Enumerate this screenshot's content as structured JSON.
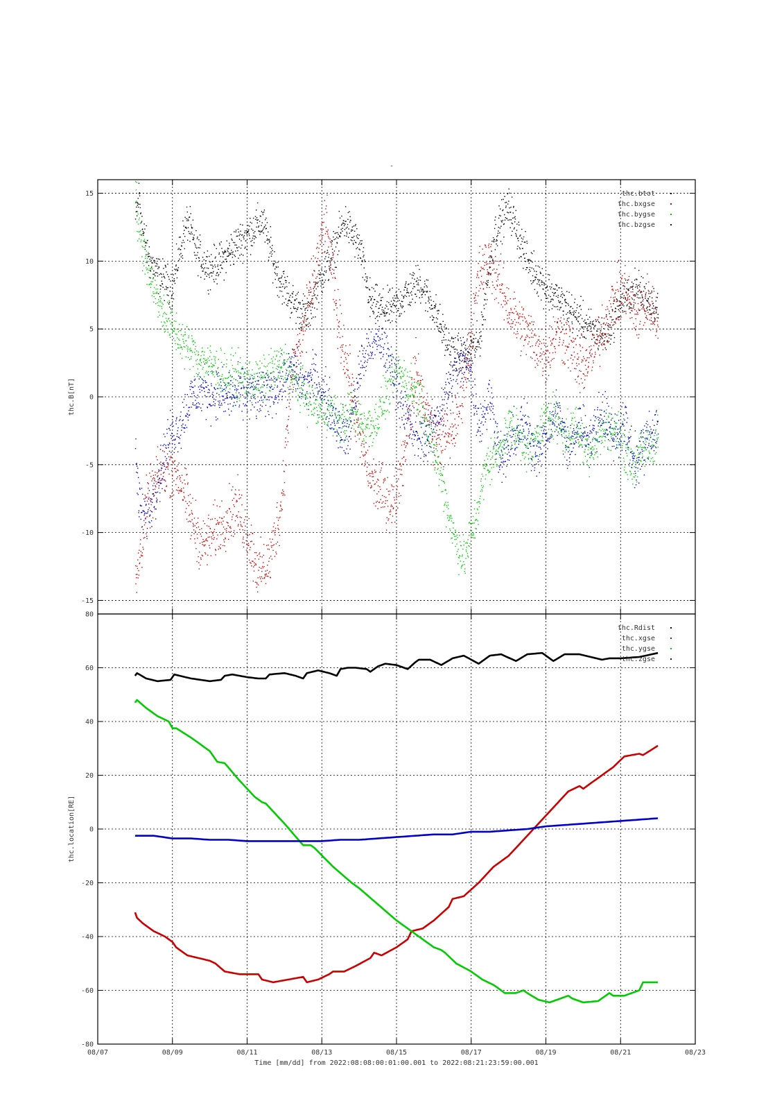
{
  "figure": {
    "title_mark": "-",
    "x_axis_title": "Time [mm/dd]  from 2022:08:08:00:01:00.001  to  2022:08:21:23:59:00.001"
  },
  "chart_data": [
    {
      "type": "scatter",
      "ylabel": "thc.B[nT]",
      "xlabel": "",
      "xlim": [
        0,
        16
      ],
      "ylim": [
        -16,
        16
      ],
      "x_ticks": [],
      "y_ticks": [
        -15,
        -10,
        -5,
        0,
        5,
        10,
        15
      ],
      "grid": true,
      "legend_position": "top-right",
      "series": [
        {
          "name": "thc.btot",
          "color": "#000000",
          "spread": 1.4,
          "x": [
            1.0,
            1.1,
            1.2,
            1.4,
            1.6,
            1.8,
            2.0,
            2.2,
            2.4,
            2.6,
            2.8,
            3.0,
            3.3,
            3.6,
            4.0,
            4.4,
            4.8,
            5.2,
            5.6,
            6.0,
            6.2,
            6.6,
            7.0,
            7.3,
            7.6,
            7.9,
            8.2,
            8.6,
            9.0,
            9.4,
            9.8,
            10.2,
            10.6,
            11.0,
            11.5,
            12.0,
            12.4,
            12.8,
            13.2,
            13.6,
            14.0,
            14.4,
            14.8,
            15.0
          ],
          "y": [
            13,
            15,
            12,
            10,
            9,
            8.5,
            8,
            11,
            13,
            11,
            10,
            9.5,
            10,
            11,
            12,
            13,
            9,
            7,
            6,
            9,
            10,
            13,
            11,
            7,
            6.5,
            6.5,
            7.5,
            8.5,
            6.5,
            3.5,
            3,
            4,
            12,
            14,
            10,
            8,
            7,
            6,
            5,
            4.5,
            7,
            8,
            7,
            6.5
          ]
        },
        {
          "name": "thc.bxgse",
          "color": "#cc0000",
          "spread": 2.0,
          "x": [
            1.0,
            1.1,
            1.3,
            1.6,
            1.9,
            2.2,
            2.5,
            2.8,
            3.1,
            3.4,
            3.7,
            4.0,
            4.3,
            4.6,
            4.9,
            5.2,
            5.5,
            5.8,
            6.1,
            6.4,
            6.7,
            7.0,
            7.3,
            7.6,
            7.9,
            8.2,
            8.5,
            8.8,
            9.0,
            9.3,
            9.6,
            9.9,
            10.2,
            10.5,
            10.8,
            11.1,
            11.4,
            11.7,
            12.0,
            12.3,
            12.6,
            12.9,
            13.2,
            13.5,
            13.8,
            14.1,
            14.4,
            14.7,
            15.0
          ],
          "y": [
            -14,
            -12,
            -8,
            -6,
            -5,
            -6,
            -9,
            -11,
            -10,
            -9,
            -8,
            -10,
            -13,
            -12,
            -8,
            2,
            5,
            9,
            13,
            6,
            2,
            -3,
            -6,
            -7,
            -8,
            -4,
            2,
            -1,
            -3,
            -3,
            -2,
            3,
            9,
            10,
            8,
            6,
            5,
            4,
            3,
            5,
            4,
            2,
            3,
            5,
            7,
            8,
            6,
            7,
            6
          ]
        },
        {
          "name": "thc.bygse",
          "color": "#00cc00",
          "spread": 1.6,
          "x": [
            1.0,
            1.1,
            1.2,
            1.4,
            1.6,
            1.8,
            2.0,
            2.3,
            2.6,
            2.9,
            3.2,
            3.5,
            3.8,
            4.1,
            4.4,
            4.7,
            5.0,
            5.3,
            5.6,
            5.9,
            6.2,
            6.5,
            6.8,
            7.1,
            7.4,
            7.7,
            8.0,
            8.3,
            8.6,
            8.9,
            9.2,
            9.5,
            9.8,
            10.1,
            10.4,
            10.7,
            11.0,
            11.3,
            11.6,
            11.9,
            12.2,
            12.5,
            12.8,
            13.1,
            13.4,
            13.7,
            14.0,
            14.3,
            14.6,
            15.0
          ],
          "y": [
            15,
            12,
            11,
            9,
            7,
            6,
            5,
            4,
            3,
            2.5,
            2,
            1.5,
            1.5,
            1.2,
            1.2,
            2,
            2.5,
            1,
            0,
            -1,
            -1,
            -2,
            -1,
            -2,
            -2,
            0,
            2,
            1,
            0,
            -3,
            -6,
            -10,
            -12,
            -9,
            -5,
            -4,
            -2,
            -3,
            -4,
            -2,
            -1,
            -3,
            -2,
            -4,
            -3,
            -2,
            -3,
            -5,
            -4,
            -3
          ]
        },
        {
          "name": "thc.bzgse",
          "color": "#0000cc",
          "spread": 1.8,
          "x": [
            1.0,
            1.1,
            1.3,
            1.6,
            1.9,
            2.2,
            2.5,
            2.8,
            3.1,
            3.4,
            3.7,
            4.0,
            4.3,
            4.6,
            4.9,
            5.2,
            5.5,
            5.8,
            6.1,
            6.4,
            6.7,
            7.0,
            7.3,
            7.6,
            7.9,
            8.2,
            8.5,
            8.8,
            9.0,
            9.3,
            9.6,
            9.9,
            10.2,
            10.5,
            10.8,
            11.1,
            11.4,
            11.7,
            12.0,
            12.3,
            12.6,
            12.9,
            13.2,
            13.5,
            13.8,
            14.1,
            14.4,
            14.7,
            15.0
          ],
          "y": [
            -4,
            -8,
            -9,
            -6,
            -3,
            -2,
            0,
            0.5,
            0.3,
            0,
            0.2,
            0.3,
            0,
            0.5,
            1,
            2,
            1,
            1.5,
            0,
            -2,
            -3,
            2,
            4,
            4,
            2,
            -1,
            -3,
            -3,
            -2,
            0,
            2,
            3,
            -2,
            0,
            -5,
            -3,
            -2,
            -4,
            -3,
            -1,
            -4,
            -2,
            -3,
            -1,
            -3,
            -2,
            -5,
            -3,
            -2
          ]
        }
      ]
    },
    {
      "type": "line",
      "ylabel": "thc.location[RE]",
      "xlabel": "",
      "xlim": [
        0,
        16
      ],
      "ylim": [
        -80,
        80
      ],
      "x_ticks": [
        "08/07",
        "08/09",
        "08/11",
        "08/13",
        "08/15",
        "08/17",
        "08/19",
        "08/21",
        "08/23"
      ],
      "y_ticks": [
        -80,
        -60,
        -40,
        -20,
        0,
        20,
        40,
        60,
        80
      ],
      "grid": true,
      "legend_position": "top-right",
      "series": [
        {
          "name": "thc.Rdist",
          "color": "#000000",
          "x": [
            1.0,
            1.05,
            1.3,
            1.6,
            1.95,
            2.0,
            2.05,
            2.5,
            3.0,
            3.3,
            3.4,
            3.6,
            4.0,
            4.3,
            4.5,
            4.6,
            5.0,
            5.3,
            5.5,
            5.6,
            5.9,
            6.2,
            6.4,
            6.5,
            6.7,
            6.9,
            7.2,
            7.3,
            7.5,
            7.7,
            8.0,
            8.3,
            8.5,
            8.6,
            8.9,
            9.2,
            9.5,
            9.8,
            10.2,
            10.5,
            10.8,
            11.2,
            11.5,
            11.9,
            12.2,
            12.5,
            12.9,
            13.2,
            13.5,
            13.7,
            14.0,
            14.5,
            15.0
          ],
          "y": [
            57,
            58,
            56,
            55,
            55.5,
            56.5,
            57.5,
            56,
            55,
            55.5,
            57,
            57.5,
            56.5,
            56,
            56,
            57.5,
            58,
            57,
            56,
            58,
            59,
            58,
            57,
            59.5,
            60,
            60,
            59.5,
            58.5,
            60.5,
            61.5,
            61,
            59.5,
            62,
            63,
            63,
            61,
            63.5,
            64.5,
            61.5,
            64.5,
            65,
            62.5,
            65,
            65.5,
            62.5,
            65,
            65,
            64,
            63,
            63.5,
            63.5,
            64,
            65.5
          ]
        },
        {
          "name": "thc.xgse",
          "color": "#cc0000",
          "x": [
            1.0,
            1.05,
            1.2,
            1.5,
            1.8,
            2.0,
            2.1,
            2.4,
            2.7,
            3.0,
            3.15,
            3.4,
            3.8,
            4.1,
            4.3,
            4.4,
            4.7,
            5.1,
            5.5,
            5.6,
            5.9,
            6.2,
            6.3,
            6.6,
            6.9,
            7.3,
            7.4,
            7.6,
            8.0,
            8.3,
            8.4,
            8.7,
            9.0,
            9.4,
            9.5,
            9.8,
            10.2,
            10.6,
            10.8,
            11.0,
            11.4,
            11.8,
            12.2,
            12.6,
            12.9,
            13.0,
            13.4,
            13.8,
            14.1,
            14.5,
            14.6,
            15.0
          ],
          "y": [
            -31,
            -33,
            -35,
            -38,
            -40,
            -42,
            -44,
            -47,
            -48,
            -49,
            -50,
            -53,
            -54,
            -54,
            -54,
            -56,
            -57,
            -56,
            -55,
            -57,
            -56,
            -54,
            -53,
            -53,
            -51,
            -48,
            -46,
            -47,
            -44,
            -41,
            -38,
            -37,
            -34,
            -29,
            -26,
            -25,
            -20,
            -14,
            -12,
            -10,
            -4,
            2,
            8,
            14,
            16,
            15,
            19,
            23,
            27,
            28,
            27.5,
            31
          ]
        },
        {
          "name": "thc.ygse",
          "color": "#00cc00",
          "x": [
            1.0,
            1.05,
            1.3,
            1.6,
            1.9,
            2.0,
            2.1,
            2.5,
            3.0,
            3.2,
            3.4,
            3.8,
            4.2,
            4.4,
            4.5,
            5.0,
            5.5,
            5.7,
            5.8,
            6.3,
            6.8,
            6.9,
            7.0,
            7.5,
            8.0,
            8.1,
            8.2,
            8.6,
            9.0,
            9.2,
            9.3,
            9.6,
            10.0,
            10.2,
            10.3,
            10.6,
            10.9,
            11.2,
            11.4,
            11.5,
            11.8,
            12.1,
            12.4,
            12.6,
            12.7,
            13.0,
            13.4,
            13.7,
            13.8,
            14.1,
            14.5,
            14.6,
            15.0
          ],
          "y": [
            47,
            48,
            45,
            42,
            40,
            37.5,
            37.5,
            34,
            29,
            25,
            24.5,
            18,
            12,
            10,
            9.5,
            2,
            -6,
            -6,
            -7,
            -14,
            -20,
            -21,
            -22,
            -28,
            -34,
            -35,
            -36,
            -40,
            -44,
            -45,
            -46,
            -50,
            -53,
            -55,
            -56,
            -58,
            -61,
            -61,
            -60,
            -61,
            -63.5,
            -64.5,
            -63,
            -62,
            -63,
            -64.5,
            -64,
            -61,
            -62,
            -62,
            -60,
            -57,
            -57
          ]
        },
        {
          "name": "thc.zgse",
          "color": "#0000cc",
          "x": [
            1.0,
            1.5,
            2.0,
            2.5,
            3.0,
            3.5,
            4.0,
            4.5,
            5.0,
            5.5,
            6.0,
            6.5,
            7.0,
            7.5,
            8.0,
            8.5,
            9.0,
            9.5,
            10.0,
            10.5,
            11.0,
            11.5,
            12.0,
            12.5,
            13.0,
            13.5,
            14.0,
            14.5,
            15.0
          ],
          "y": [
            -2.5,
            -2.5,
            -3.5,
            -3.5,
            -4,
            -4,
            -4.5,
            -4.5,
            -4.5,
            -4.5,
            -4.5,
            -4,
            -4,
            -3.5,
            -3,
            -2.5,
            -2,
            -2,
            -1,
            -1,
            -0.5,
            0,
            1,
            1.5,
            2,
            2.5,
            3,
            3.5,
            4
          ]
        }
      ]
    }
  ]
}
